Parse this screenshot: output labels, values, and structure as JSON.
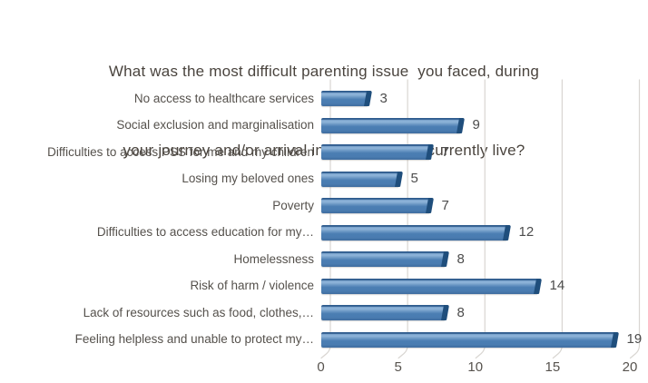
{
  "title": {
    "line1": "What was the most difficult parenting issue  you faced, during",
    "line2": "your journey and/or arrival in the place you currently live?"
  },
  "chart_data": {
    "type": "bar",
    "orientation": "horizontal",
    "style": "3d-bar",
    "title": "What was the most difficult parenting issue you faced, during your journey and/or arrival in the place you currently live?",
    "categories": [
      "No access to healthcare services",
      "Social exclusion and marginalisation",
      "Difficulties to access PSS for me and my children",
      "Losing my beloved ones",
      "Poverty",
      "Difficulties to access education for my…",
      "Homelessness",
      "Risk of harm / violence",
      "Lack of resources such as food, clothes,…",
      "Feeling helpless and unable to protect my…"
    ],
    "values": [
      3,
      9,
      7,
      5,
      7,
      12,
      8,
      14,
      8,
      19
    ],
    "xlim": [
      0,
      20
    ],
    "x_ticks": [
      "0",
      "5",
      "10",
      "15",
      "20"
    ],
    "xlabel": "",
    "ylabel": "",
    "grid": true,
    "legend": "none",
    "colors": {
      "bar_face": "#4b7eb3",
      "bar_highlight": "#8ab0d7",
      "bar_top_edge": "#2f5c8e",
      "bar_end_cap": "#1f4e7c",
      "gridline": "#d9d6d2",
      "axis_text": "#57534e",
      "category_text": "#55514c",
      "value_text": "#4c4c4c",
      "title_text": "#4a443e",
      "background": "#ffffff"
    }
  }
}
